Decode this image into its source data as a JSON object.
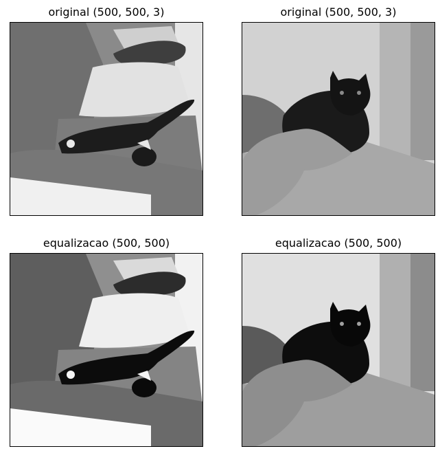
{
  "figure": {
    "panels": [
      {
        "title": "original (500, 500, 3)",
        "image": "cat-on-sofa-grayscale"
      },
      {
        "title": "original (500, 500, 3)",
        "image": "black-cat-on-bed-grayscale"
      },
      {
        "title": "equalizacao (500, 500)",
        "image": "cat-on-sofa-equalized"
      },
      {
        "title": "equalizacao (500, 500)",
        "image": "black-cat-on-bed-equalized"
      }
    ]
  }
}
